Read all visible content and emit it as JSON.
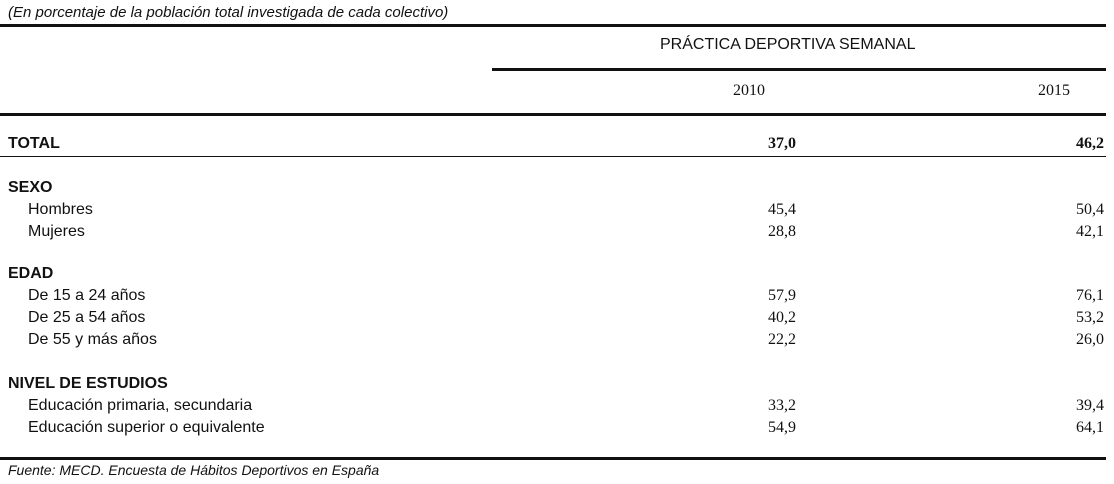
{
  "subtitle": "(En porcentaje de la población total investigada de cada colectivo)",
  "table": {
    "group_header": "PRÁCTICA DEPORTIVA SEMANAL",
    "years": [
      "2010",
      "2015"
    ],
    "total": {
      "label": "TOTAL",
      "values": [
        "37,0",
        "46,2"
      ]
    },
    "sections": [
      {
        "label": "SEXO",
        "rows": [
          {
            "label": "Hombres",
            "values": [
              "45,4",
              "50,4"
            ]
          },
          {
            "label": "Mujeres",
            "values": [
              "28,8",
              "42,1"
            ]
          }
        ]
      },
      {
        "label": "EDAD",
        "rows": [
          {
            "label": "De 15 a 24 años",
            "values": [
              "57,9",
              "76,1"
            ]
          },
          {
            "label": "De 25 a 54 años",
            "values": [
              "40,2",
              "53,2"
            ]
          },
          {
            "label": "De 55 y más años",
            "values": [
              "22,2",
              "26,0"
            ]
          }
        ]
      },
      {
        "label": "NIVEL DE ESTUDIOS",
        "rows": [
          {
            "label": "Educación primaria, secundaria",
            "values": [
              "33,2",
              "39,4"
            ]
          },
          {
            "label": "Educación superior o equivalente",
            "values": [
              "54,9",
              "64,1"
            ]
          }
        ]
      }
    ]
  },
  "source": "Fuente: MECD. Encuesta de Hábitos Deportivos en España"
}
